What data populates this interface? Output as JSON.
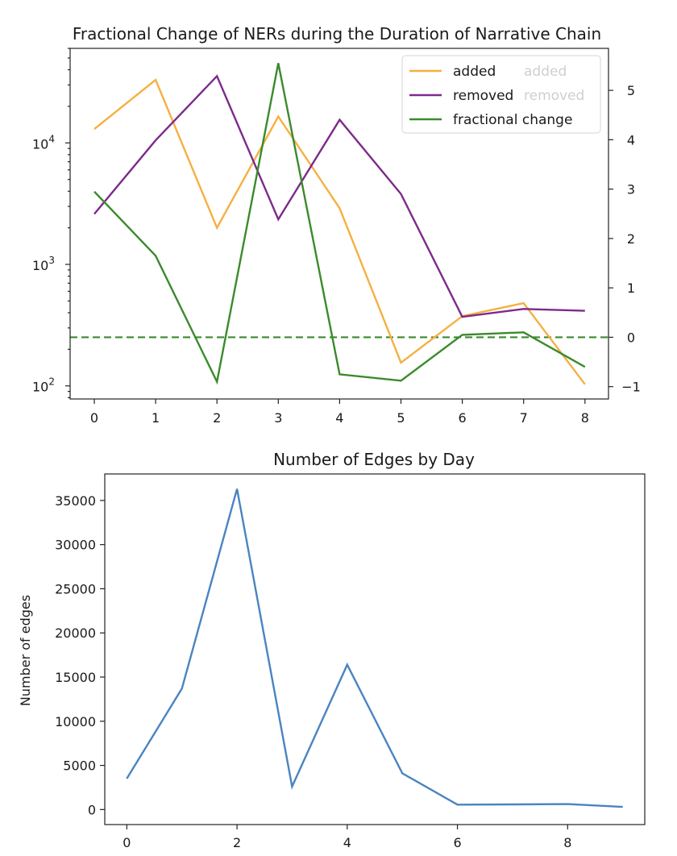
{
  "chart_data": [
    {
      "type": "line",
      "title": "Fractional Change of NERs during the Duration of Narrative Chain",
      "x": [
        0,
        1,
        2,
        3,
        4,
        5,
        6,
        7,
        8
      ],
      "x_ticks": [
        "0",
        "1",
        "2",
        "3",
        "4",
        "5",
        "6",
        "7",
        "8"
      ],
      "left_axis": {
        "scale": "log",
        "ylim": [
          78,
          60000
        ],
        "ticks": [
          {
            "value": 100,
            "base": "10",
            "exp": "2"
          },
          {
            "value": 1000,
            "base": "10",
            "exp": "3"
          },
          {
            "value": 10000,
            "base": "10",
            "exp": "4"
          }
        ]
      },
      "right_axis": {
        "scale": "linear",
        "ylim": [
          -1.25,
          5.85
        ],
        "ticks": [
          "-1",
          "0",
          "1",
          "2",
          "3",
          "4",
          "5"
        ]
      },
      "series": [
        {
          "name": "added",
          "axis": "left",
          "color": "#f5b041",
          "values": [
            13000,
            33000,
            2000,
            16500,
            2900,
            155,
            375,
            480,
            103
          ]
        },
        {
          "name": "removed",
          "axis": "left",
          "color": "#7d2a8c",
          "values": [
            2600,
            10500,
            35500,
            2350,
            15500,
            3800,
            370,
            430,
            415
          ]
        },
        {
          "name": "fractional change",
          "axis": "right",
          "color": "#3b8a2c",
          "values": [
            2.95,
            1.65,
            -0.9,
            5.55,
            -0.75,
            -0.88,
            0.05,
            0.1,
            -0.6
          ]
        }
      ],
      "reference_line": {
        "axis": "right",
        "value": 0,
        "style": "dashed",
        "color": "#3b8a2c"
      },
      "legend": {
        "placement": "top-right",
        "ghost_labels": [
          "added",
          "removed"
        ]
      }
    },
    {
      "type": "line",
      "title": "Number of Edges by Day",
      "ylabel": "Number of edges",
      "x": [
        0,
        1,
        2,
        3,
        4,
        5,
        6,
        7,
        8,
        9
      ],
      "x_ticks": [
        "0",
        "2",
        "4",
        "6",
        "8"
      ],
      "xlim": [
        -0.4,
        9.4
      ],
      "ylim": [
        -1700,
        38000
      ],
      "y_ticks": [
        "0",
        "5000",
        "10000",
        "15000",
        "20000",
        "25000",
        "30000",
        "35000"
      ],
      "series": [
        {
          "color": "#4a84c0",
          "values": [
            3500,
            13700,
            36300,
            2600,
            16400,
            4100,
            550,
            580,
            620,
            300
          ]
        }
      ]
    }
  ]
}
